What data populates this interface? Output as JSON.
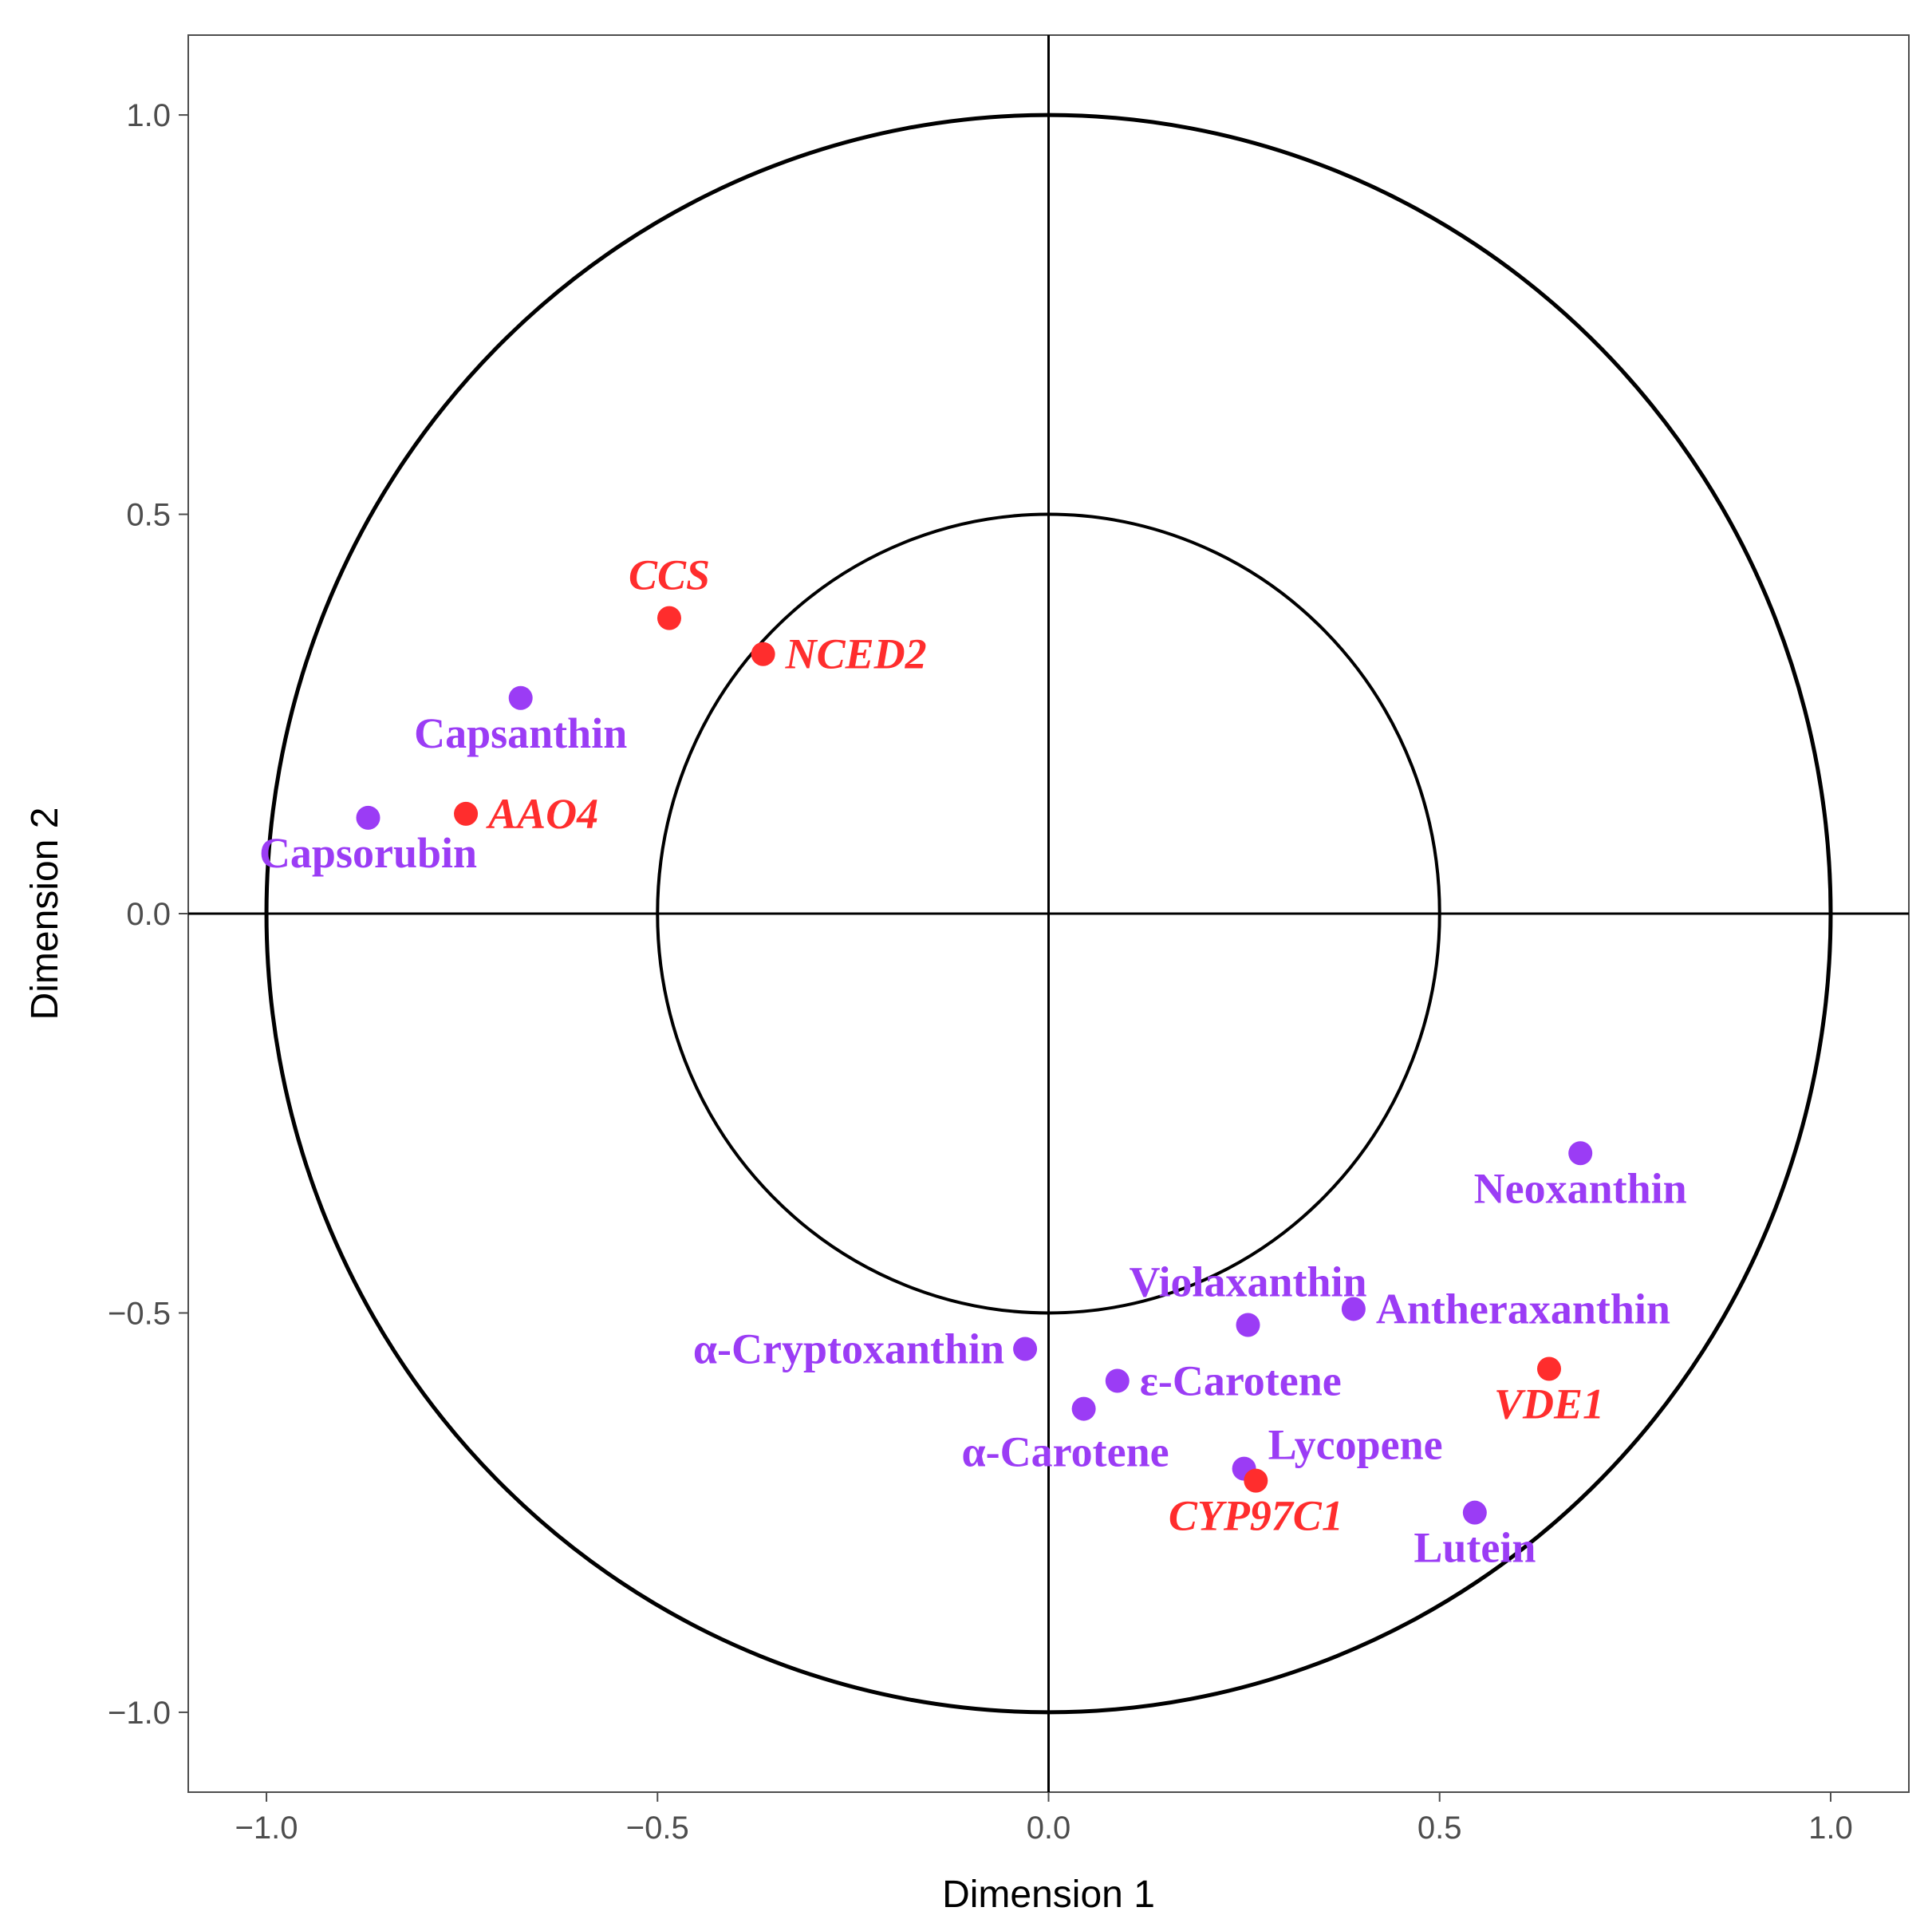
{
  "chart_data": {
    "type": "scatter",
    "title": "",
    "xlabel": "Dimension 1",
    "ylabel": "Dimension 2",
    "xlim": [
      -1.1,
      1.1
    ],
    "ylim": [
      -1.1,
      1.1
    ],
    "xticks": [
      "−1.0",
      "−0.5",
      "0.0",
      "0.5",
      "1.0"
    ],
    "yticks": [
      "−1.0",
      "−0.5",
      "0.0",
      "0.5",
      "1.0"
    ],
    "xtick_values": [
      -1.0,
      -0.5,
      0.0,
      0.5,
      1.0
    ],
    "ytick_values": [
      -1.0,
      -0.5,
      0.0,
      0.5,
      1.0
    ],
    "reference_circles": [
      1.0,
      0.5
    ],
    "reference_lines": {
      "x": 0,
      "y": 0
    },
    "grid": false,
    "colors": {
      "carotenoid": "#9b3cf5",
      "gene": "#ff2d2d",
      "axis": "#000000",
      "frame": "#4d4d4d"
    },
    "points": [
      {
        "label": "CCS",
        "group": "gene",
        "x": -0.485,
        "y": 0.37,
        "anchor": "above"
      },
      {
        "label": "NCED2",
        "group": "gene",
        "x": -0.365,
        "y": 0.325,
        "anchor": "right"
      },
      {
        "label": "Capsanthin",
        "group": "carotenoid",
        "x": -0.675,
        "y": 0.27,
        "anchor": "below"
      },
      {
        "label": "AAO4",
        "group": "gene",
        "x": -0.745,
        "y": 0.125,
        "anchor": "right"
      },
      {
        "label": "Capsorubin",
        "group": "carotenoid",
        "x": -0.87,
        "y": 0.12,
        "anchor": "below"
      },
      {
        "label": "Neoxanthin",
        "group": "carotenoid",
        "x": 0.68,
        "y": -0.3,
        "anchor": "below"
      },
      {
        "label": "Violaxanthin",
        "group": "carotenoid",
        "x": 0.255,
        "y": -0.515,
        "anchor": "above"
      },
      {
        "label": "Antheraxanthin",
        "group": "carotenoid",
        "x": 0.39,
        "y": -0.495,
        "anchor": "right"
      },
      {
        "label": "α-Cryptoxanthin",
        "group": "carotenoid",
        "x": -0.03,
        "y": -0.545,
        "anchor": "left"
      },
      {
        "label": "ε-Carotene",
        "group": "carotenoid",
        "x": 0.088,
        "y": -0.585,
        "anchor": "right"
      },
      {
        "label": "VDE1",
        "group": "gene",
        "x": 0.64,
        "y": -0.57,
        "anchor": "below"
      },
      {
        "label": "α-Carotene",
        "group": "carotenoid",
        "x": 0.045,
        "y": -0.62,
        "anchor": "below-left"
      },
      {
        "label": "Lycopene",
        "group": "carotenoid",
        "x": 0.25,
        "y": -0.695,
        "anchor": "above-right"
      },
      {
        "label": "CYP97C1",
        "group": "gene",
        "x": 0.265,
        "y": -0.71,
        "anchor": "below"
      },
      {
        "label": "Lutein",
        "group": "carotenoid",
        "x": 0.545,
        "y": -0.75,
        "anchor": "below"
      }
    ]
  }
}
